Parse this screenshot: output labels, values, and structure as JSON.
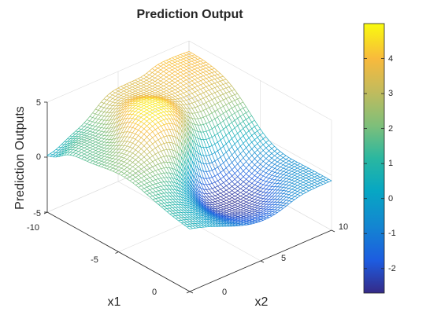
{
  "chart_data": {
    "type": "surface-mesh",
    "title": "Prediction Output",
    "xlabel": "x1",
    "ylabel": "x2",
    "zlabel": "Prediction Outputs",
    "x1_range": [
      -10,
      0
    ],
    "x2_range": [
      0,
      10
    ],
    "z_range": [
      -5,
      5
    ],
    "x1_ticks": [
      "-10",
      "-5",
      "0"
    ],
    "x2_ticks": [
      "0",
      "5",
      "10"
    ],
    "z_ticks": [
      "-5",
      "0",
      "5"
    ],
    "colorbar": {
      "range": [
        -2.7,
        5.0
      ],
      "ticks": [
        "-2",
        "-1",
        "0",
        "1",
        "2",
        "3",
        "4"
      ],
      "colormap": "parula"
    },
    "grid": true,
    "features": [
      {
        "x1": -6.5,
        "x2": 4.0,
        "z": 4.9
      },
      {
        "x1": -10.0,
        "x2": 6.5,
        "z": 3.5
      },
      {
        "x1": -10.0,
        "x2": 8.0,
        "z": 4.2
      },
      {
        "x1": -10.0,
        "x2": 0.0,
        "z": 0.0
      },
      {
        "x1": -8.5,
        "x2": 1.0,
        "z": 1.8
      },
      {
        "x1": -3.5,
        "x2": 5.8,
        "z": -2.6
      },
      {
        "x1": 0.0,
        "x2": 10.0,
        "z": -0.5
      }
    ]
  }
}
